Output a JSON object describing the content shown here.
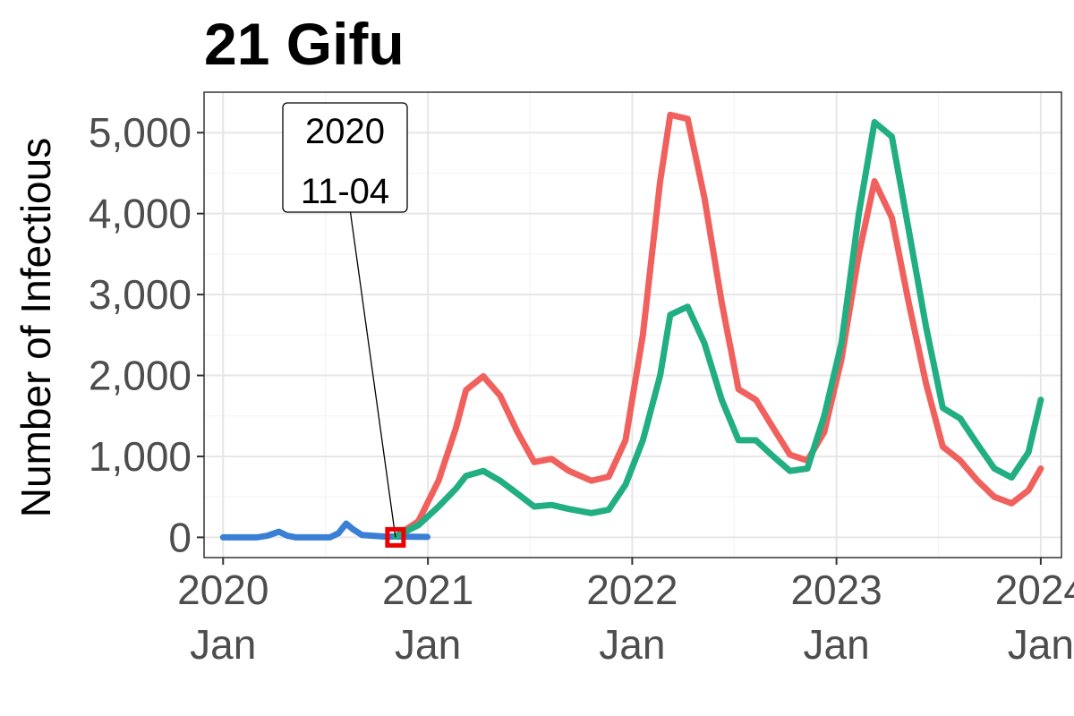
{
  "chart_data": {
    "type": "line",
    "title": "21 Gifu",
    "xlabel": "",
    "ylabel": "Number of Infectious",
    "ylim": [
      -250,
      5500
    ],
    "xlim": [
      "2019-11-28",
      "2024-02-07"
    ],
    "grid": true,
    "legend": "none",
    "y_ticks": [
      {
        "value": 0,
        "label": "0"
      },
      {
        "value": 1000,
        "label": "1,000"
      },
      {
        "value": 2000,
        "label": "2,000"
      },
      {
        "value": 3000,
        "label": "3,000"
      },
      {
        "value": 4000,
        "label": "4,000"
      },
      {
        "value": 5000,
        "label": "5,000"
      }
    ],
    "x_ticks": [
      {
        "value": "2020-01-01",
        "label1": "2020",
        "label2": "Jan"
      },
      {
        "value": "2021-01-01",
        "label1": "2021",
        "label2": "Jan"
      },
      {
        "value": "2022-01-01",
        "label1": "2022",
        "label2": "Jan"
      },
      {
        "value": "2023-01-01",
        "label1": "2023",
        "label2": "Jan"
      },
      {
        "value": "2024-01-01",
        "label1": "2024",
        "label2": "Jan"
      }
    ],
    "series": [
      {
        "color": "#3a7fd5",
        "points": [
          [
            "2020-01-01",
            0
          ],
          [
            "2020-03-01",
            0
          ],
          [
            "2020-03-20",
            20
          ],
          [
            "2020-04-10",
            70
          ],
          [
            "2020-04-25",
            20
          ],
          [
            "2020-05-10",
            0
          ],
          [
            "2020-07-10",
            0
          ],
          [
            "2020-07-25",
            50
          ],
          [
            "2020-08-08",
            170
          ],
          [
            "2020-08-20",
            100
          ],
          [
            "2020-09-05",
            30
          ],
          [
            "2020-09-25",
            20
          ],
          [
            "2020-10-15",
            10
          ],
          [
            "2020-11-04",
            10
          ],
          [
            "2020-12-31",
            5
          ]
        ]
      },
      {
        "color": "#f0615e",
        "points": [
          [
            "2020-11-04",
            10
          ],
          [
            "2020-12-15",
            200
          ],
          [
            "2021-01-20",
            700
          ],
          [
            "2021-02-20",
            1350
          ],
          [
            "2021-03-10",
            1820
          ],
          [
            "2021-04-10",
            1990
          ],
          [
            "2021-05-10",
            1750
          ],
          [
            "2021-06-10",
            1300
          ],
          [
            "2021-07-10",
            930
          ],
          [
            "2021-08-10",
            970
          ],
          [
            "2021-09-10",
            820
          ],
          [
            "2021-10-20",
            700
          ],
          [
            "2021-11-20",
            750
          ],
          [
            "2021-12-20",
            1200
          ],
          [
            "2022-01-20",
            2500
          ],
          [
            "2022-02-20",
            4400
          ],
          [
            "2022-03-10",
            5220
          ],
          [
            "2022-04-10",
            5170
          ],
          [
            "2022-05-10",
            4200
          ],
          [
            "2022-06-10",
            2900
          ],
          [
            "2022-07-10",
            1830
          ],
          [
            "2022-08-10",
            1700
          ],
          [
            "2022-09-10",
            1350
          ],
          [
            "2022-10-10",
            1020
          ],
          [
            "2022-11-10",
            950
          ],
          [
            "2022-12-10",
            1300
          ],
          [
            "2023-01-10",
            2200
          ],
          [
            "2023-02-10",
            3500
          ],
          [
            "2023-03-10",
            4400
          ],
          [
            "2023-04-10",
            3950
          ],
          [
            "2023-05-10",
            2900
          ],
          [
            "2023-06-10",
            1900
          ],
          [
            "2023-07-10",
            1120
          ],
          [
            "2023-08-10",
            950
          ],
          [
            "2023-09-10",
            700
          ],
          [
            "2023-10-10",
            500
          ],
          [
            "2023-11-10",
            420
          ],
          [
            "2023-12-10",
            580
          ],
          [
            "2024-01-01",
            850
          ]
        ]
      },
      {
        "color": "#21ae83",
        "points": [
          [
            "2020-11-04",
            10
          ],
          [
            "2020-12-15",
            150
          ],
          [
            "2021-01-20",
            380
          ],
          [
            "2021-02-20",
            600
          ],
          [
            "2021-03-10",
            760
          ],
          [
            "2021-04-10",
            820
          ],
          [
            "2021-05-10",
            700
          ],
          [
            "2021-06-10",
            540
          ],
          [
            "2021-07-10",
            380
          ],
          [
            "2021-08-10",
            400
          ],
          [
            "2021-09-10",
            350
          ],
          [
            "2021-10-20",
            300
          ],
          [
            "2021-11-20",
            340
          ],
          [
            "2021-12-20",
            650
          ],
          [
            "2022-01-20",
            1200
          ],
          [
            "2022-02-20",
            2000
          ],
          [
            "2022-03-10",
            2750
          ],
          [
            "2022-04-10",
            2850
          ],
          [
            "2022-05-10",
            2400
          ],
          [
            "2022-06-10",
            1700
          ],
          [
            "2022-07-10",
            1200
          ],
          [
            "2022-08-10",
            1200
          ],
          [
            "2022-09-10",
            1000
          ],
          [
            "2022-10-10",
            820
          ],
          [
            "2022-11-10",
            850
          ],
          [
            "2022-12-10",
            1500
          ],
          [
            "2023-01-10",
            2400
          ],
          [
            "2023-02-10",
            4000
          ],
          [
            "2023-03-10",
            5130
          ],
          [
            "2023-04-10",
            4950
          ],
          [
            "2023-05-10",
            3800
          ],
          [
            "2023-06-10",
            2600
          ],
          [
            "2023-07-10",
            1600
          ],
          [
            "2023-08-10",
            1470
          ],
          [
            "2023-09-10",
            1150
          ],
          [
            "2023-10-10",
            850
          ],
          [
            "2023-11-10",
            740
          ],
          [
            "2023-12-10",
            1050
          ],
          [
            "2024-01-01",
            1700
          ]
        ]
      }
    ],
    "annotation": {
      "date": "2020-11-04",
      "value": 0,
      "line1": "2020",
      "line2": "11-04",
      "marker_color": "#ee0000"
    }
  }
}
